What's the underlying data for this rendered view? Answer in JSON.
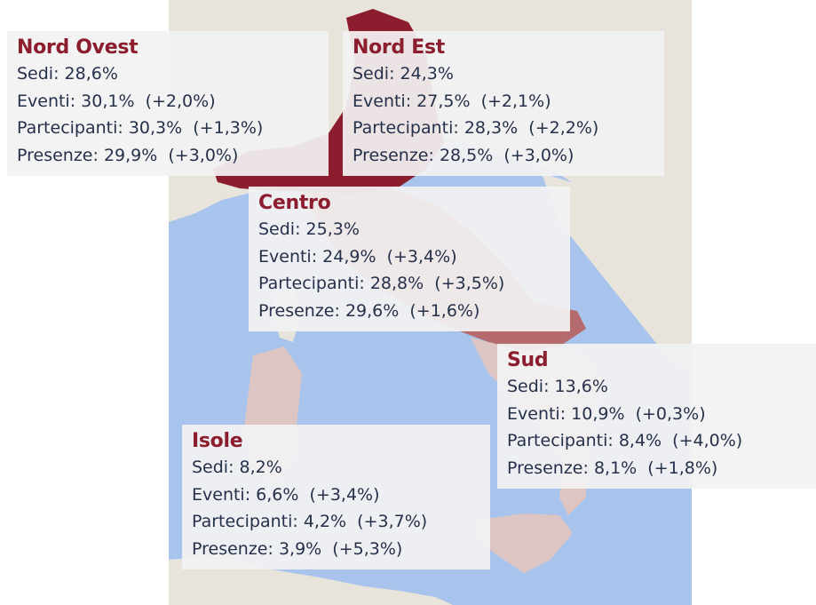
{
  "colors": {
    "sea": "#a9c4ec",
    "land": "#e8e4dc",
    "region_dark": "#8c1d2e",
    "region_mid": "#b56a6d",
    "region_light": "#dcc5c3",
    "title": "#8c1d2e",
    "text": "#25304a",
    "box_bg": "#f2f2f2"
  },
  "regions": [
    {
      "title": "Nord Ovest",
      "lines": [
        "Sedi: 28,6%",
        "Eventi: 30,1%  (+2,0%)",
        "Partecipanti: 30,3%  (+1,3%)",
        "Presenze: 29,9%  (+3,0%)"
      ]
    },
    {
      "title": "Nord Est",
      "lines": [
        "Sedi: 24,3%",
        "Eventi: 27,5%  (+2,1%)",
        "Partecipanti: 28,3%  (+2,2%)",
        "Presenze: 28,5%  (+3,0%)"
      ]
    },
    {
      "title": "Centro",
      "lines": [
        "Sedi: 25,3%",
        "Eventi: 24,9%  (+3,4%)",
        "Partecipanti: 28,8%  (+3,5%)",
        "Presenze: 29,6%  (+1,6%)"
      ]
    },
    {
      "title": "Sud",
      "lines": [
        "Sedi: 13,6%",
        "Eventi: 10,9%  (+0,3%)",
        "Partecipanti: 8,4%  (+4,0%)",
        "Presenze: 8,1%  (+1,8%)"
      ]
    },
    {
      "title": "Isole",
      "lines": [
        "Sedi: 8,2%",
        "Eventi: 6,6%  (+3,4%)",
        "Partecipanti: 4,2%  (+3,7%)",
        "Presenze: 3,9%  (+5,3%)"
      ]
    }
  ]
}
